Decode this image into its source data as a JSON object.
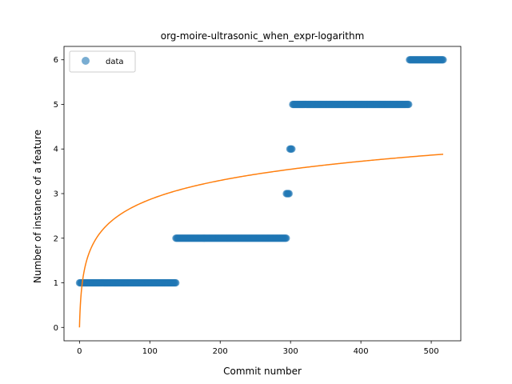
{
  "chart_data": {
    "type": "scatter",
    "title": "org-moire-ultrasonic_when_expr-logarithm",
    "xlabel": "Commit number",
    "ylabel": "Number of instance of a feature",
    "xlim": [
      -22,
      542
    ],
    "ylim": [
      -0.3,
      6.3
    ],
    "xticks": [
      0,
      100,
      200,
      300,
      400,
      500
    ],
    "yticks": [
      0,
      1,
      2,
      3,
      4,
      5,
      6
    ],
    "grid": false,
    "legend": {
      "position": "top-left",
      "entries": [
        "data"
      ]
    },
    "series": [
      {
        "name": "data",
        "kind": "scatter",
        "color": "#1f77b4",
        "segments": [
          {
            "x_start": 0,
            "x_end": 137,
            "y": 1
          },
          {
            "x_start": 137,
            "x_end": 294,
            "y": 2
          },
          {
            "x_start": 294,
            "x_end": 298,
            "y": 3
          },
          {
            "x_start": 299,
            "x_end": 302,
            "y": 4
          },
          {
            "x_start": 303,
            "x_end": 468,
            "y": 5
          },
          {
            "x_start": 469,
            "x_end": 517,
            "y": 6
          }
        ]
      },
      {
        "name": "",
        "kind": "line",
        "color": "#ff7f0e",
        "function": "a + b*log(x+1)",
        "a": 0,
        "b": 0.6213,
        "x_start": 0,
        "x_end": 517
      }
    ]
  }
}
